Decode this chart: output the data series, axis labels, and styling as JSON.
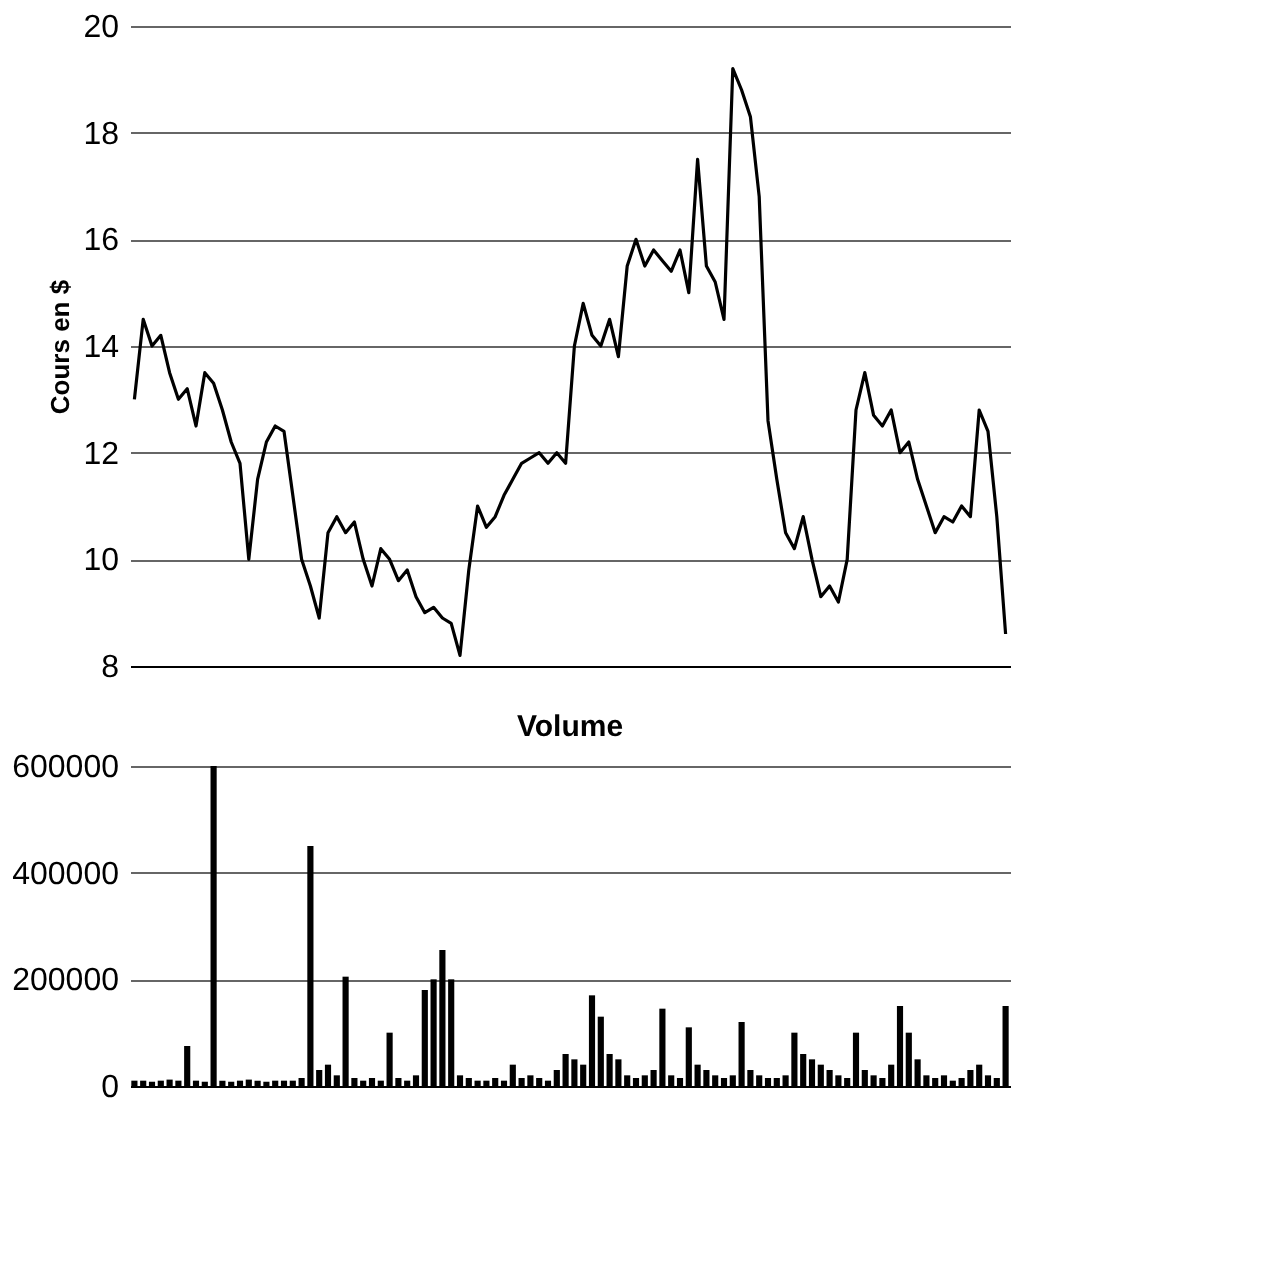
{
  "chart_data": [
    {
      "type": "line",
      "ylabel": "Cours en $",
      "ylim": [
        8,
        20
      ],
      "yticks": [
        8,
        10,
        12,
        14,
        16,
        18,
        20
      ],
      "grid": "y",
      "tick_labels": "y",
      "line_style": "solid",
      "categories": [
        null,
        null,
        null,
        null,
        null,
        null,
        null,
        null,
        null,
        null,
        null,
        null,
        null,
        null,
        null,
        null,
        null,
        null,
        null,
        null,
        null,
        null,
        null,
        null,
        null,
        null,
        null,
        null,
        null,
        null,
        null,
        null,
        null,
        null,
        null,
        null,
        null,
        null,
        null,
        null,
        null,
        null,
        null,
        null,
        null,
        null,
        null,
        null,
        null,
        null,
        null,
        null,
        null,
        null,
        null,
        null,
        null,
        null,
        null,
        null,
        null,
        null,
        null,
        null,
        null,
        null,
        null,
        null,
        null,
        null,
        null,
        null,
        null,
        null,
        null,
        null,
        null,
        null,
        null,
        null,
        null,
        null,
        null,
        null,
        null,
        null,
        null,
        null,
        null,
        null,
        null,
        null,
        null,
        null,
        null,
        null,
        null,
        null,
        null,
        null
      ],
      "series": [
        {
          "color": "#000000",
          "values": [
            13.0,
            14.5,
            14.0,
            14.2,
            13.5,
            13.0,
            13.2,
            12.5,
            13.5,
            13.3,
            12.8,
            12.2,
            11.8,
            10.0,
            11.5,
            12.2,
            12.5,
            12.4,
            11.2,
            10.0,
            9.5,
            8.9,
            10.5,
            10.8,
            10.5,
            10.7,
            10.0,
            9.5,
            10.2,
            10.0,
            9.6,
            9.8,
            9.3,
            9.0,
            9.1,
            8.9,
            8.8,
            8.2,
            9.8,
            11.0,
            10.6,
            10.8,
            11.2,
            11.5,
            11.8,
            11.9,
            12.0,
            11.8,
            12.0,
            11.8,
            14.0,
            14.8,
            14.2,
            14.0,
            14.5,
            13.8,
            15.5,
            16.0,
            15.5,
            15.8,
            15.6,
            15.4,
            15.8,
            15.0,
            17.5,
            15.5,
            15.2,
            14.5,
            19.2,
            18.8,
            18.3,
            16.8,
            12.6,
            11.5,
            10.5,
            10.2,
            10.8,
            10.0,
            9.3,
            9.5,
            9.2,
            10.0,
            12.8,
            13.5,
            12.7,
            12.5,
            12.8,
            12.0,
            12.2,
            11.5,
            11.0,
            10.5,
            10.8,
            10.7,
            11.0,
            10.8,
            12.8,
            12.4,
            10.8,
            8.6
          ]
        }
      ]
    },
    {
      "type": "bar",
      "title": "Volume",
      "ylim": [
        0,
        600000
      ],
      "yticks": [
        0,
        200000,
        400000,
        600000
      ],
      "grid": "y",
      "tick_labels": "y",
      "categories": [
        null,
        null,
        null,
        null,
        null,
        null,
        null,
        null,
        null,
        null,
        null,
        null,
        null,
        null,
        null,
        null,
        null,
        null,
        null,
        null,
        null,
        null,
        null,
        null,
        null,
        null,
        null,
        null,
        null,
        null,
        null,
        null,
        null,
        null,
        null,
        null,
        null,
        null,
        null,
        null,
        null,
        null,
        null,
        null,
        null,
        null,
        null,
        null,
        null,
        null,
        null,
        null,
        null,
        null,
        null,
        null,
        null,
        null,
        null,
        null,
        null,
        null,
        null,
        null,
        null,
        null,
        null,
        null,
        null,
        null,
        null,
        null,
        null,
        null,
        null,
        null,
        null,
        null,
        null,
        null,
        null,
        null,
        null,
        null,
        null,
        null,
        null,
        null,
        null,
        null,
        null,
        null,
        null,
        null,
        null,
        null,
        null,
        null,
        null,
        null
      ],
      "series": [
        {
          "color": "#000000",
          "values": [
            10000,
            10000,
            8000,
            10000,
            12000,
            10000,
            75000,
            10000,
            8000,
            600000,
            10000,
            8000,
            10000,
            12000,
            10000,
            8000,
            10000,
            10000,
            10000,
            15000,
            450000,
            30000,
            40000,
            20000,
            205000,
            15000,
            10000,
            15000,
            10000,
            100000,
            15000,
            10000,
            20000,
            180000,
            200000,
            255000,
            200000,
            20000,
            15000,
            10000,
            10000,
            15000,
            10000,
            40000,
            15000,
            20000,
            15000,
            10000,
            30000,
            60000,
            50000,
            40000,
            170000,
            130000,
            60000,
            50000,
            20000,
            15000,
            20000,
            30000,
            145000,
            20000,
            15000,
            110000,
            40000,
            30000,
            20000,
            15000,
            20000,
            120000,
            30000,
            20000,
            15000,
            15000,
            20000,
            100000,
            60000,
            50000,
            40000,
            30000,
            20000,
            15000,
            100000,
            30000,
            20000,
            15000,
            40000,
            150000,
            100000,
            50000,
            20000,
            15000,
            20000,
            10000,
            15000,
            30000,
            40000,
            20000,
            15000,
            150000
          ]
        }
      ]
    }
  ]
}
